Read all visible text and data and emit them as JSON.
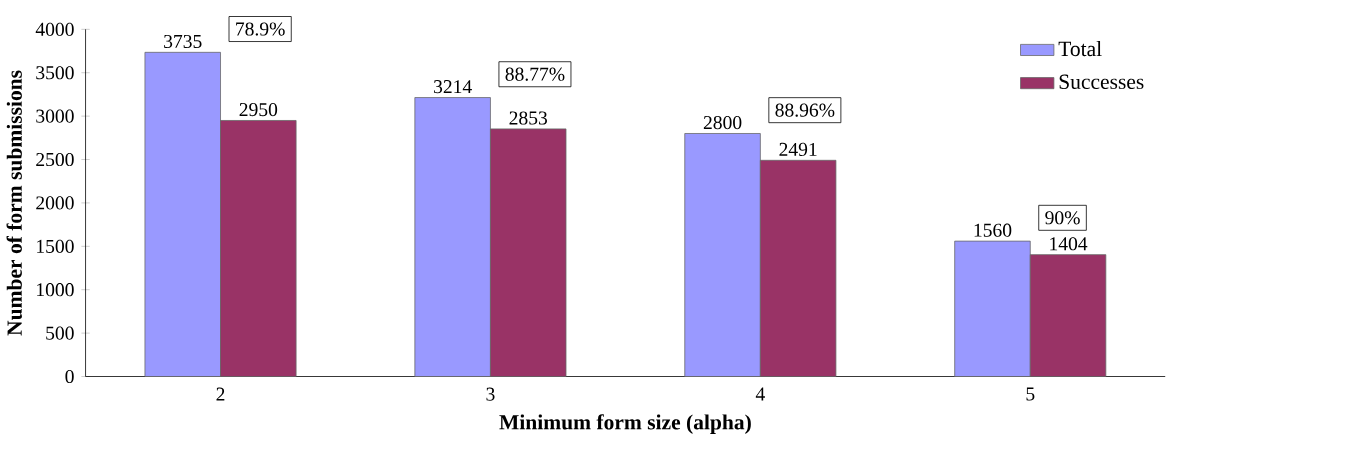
{
  "chart_data": {
    "type": "bar",
    "xlabel": "Minimum form size (alpha)",
    "ylabel": "Number of form submissions",
    "categories": [
      "2",
      "3",
      "4",
      "5"
    ],
    "series": [
      {
        "name": "Total",
        "color": "#9999ff",
        "values": [
          3735,
          3214,
          2800,
          1560
        ]
      },
      {
        "name": "Successes",
        "color": "#993366",
        "values": [
          2950,
          2853,
          2491,
          1404
        ]
      }
    ],
    "ylim": [
      0,
      4000
    ],
    "yticks": [
      0,
      500,
      1000,
      1500,
      2000,
      2500,
      3000,
      3500,
      4000
    ],
    "data_labels": true,
    "legend": "top right",
    "grid": false,
    "annotations": [
      "78.9%",
      "88.77%",
      "88.96%",
      "90%"
    ]
  }
}
